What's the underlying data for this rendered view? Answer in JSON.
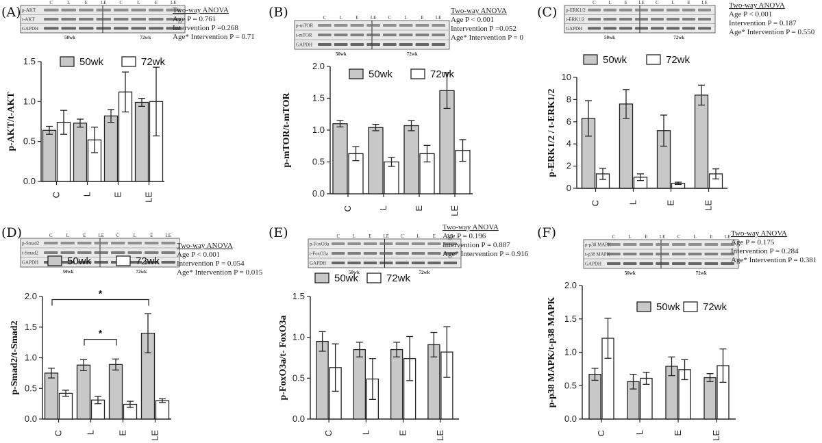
{
  "chart_data": [
    {
      "panel": "(A)",
      "type": "bar",
      "ylabel": "p-AKT/t-AKT",
      "categories": [
        "C",
        "L",
        "E",
        "LE"
      ],
      "ylim": [
        0,
        1.5
      ],
      "yticks": [
        "0.0",
        "0.5",
        "1.0",
        "1.5"
      ],
      "series": [
        {
          "name": "50wk",
          "values": [
            0.64,
            0.73,
            0.82,
            0.99
          ],
          "errors": [
            0.05,
            0.05,
            0.08,
            0.05
          ]
        },
        {
          "name": "72wk",
          "values": [
            0.74,
            0.52,
            1.12,
            1.0
          ],
          "errors": [
            0.15,
            0.16,
            0.25,
            0.43
          ]
        }
      ],
      "anova": [
        "Two-way ANOVA",
        "Age P = 0.761",
        "Intervention P =0.268",
        "Age* Intervention P = 0.71"
      ],
      "blot": {
        "lanes": [
          "C",
          "L",
          "E",
          "LE",
          "C",
          "L",
          "E",
          "LE"
        ],
        "rows": [
          "p-AKT",
          "t-AKT",
          "GAPDH"
        ],
        "groups": [
          "50wk",
          "72wk"
        ]
      },
      "sig": []
    },
    {
      "panel": "(B)",
      "type": "bar",
      "ylabel": "p-mTOR/t-mTOR",
      "categories": [
        "C",
        "L",
        "E",
        "LE"
      ],
      "ylim": [
        0,
        2.0
      ],
      "yticks": [
        "0.0",
        "0.5",
        "1.0",
        "1.5",
        "2.0"
      ],
      "series": [
        {
          "name": "50wk",
          "values": [
            1.1,
            1.04,
            1.07,
            1.62
          ],
          "errors": [
            0.05,
            0.05,
            0.08,
            0.28
          ]
        },
        {
          "name": "72wk",
          "values": [
            0.63,
            0.5,
            0.63,
            0.68
          ],
          "errors": [
            0.11,
            0.07,
            0.13,
            0.17
          ]
        }
      ],
      "anova": [
        "Two-way ANOVA",
        "Age P < 0.001",
        "Intervention P =0.052",
        "Age* Intervention P = 0"
      ],
      "blot": {
        "lanes": [
          "C",
          "L",
          "E",
          "LE",
          "C",
          "L",
          "E",
          "LE"
        ],
        "rows": [
          "p-mTOR",
          "t-mTOR",
          "GAPDH"
        ],
        "groups": [
          "50wk",
          "72wk"
        ]
      },
      "sig": []
    },
    {
      "panel": "(C)",
      "type": "bar",
      "ylabel": "p-ERK1/2 / t-ERK1/2",
      "categories": [
        "C",
        "L",
        "E",
        "LE"
      ],
      "ylim": [
        0,
        10
      ],
      "yticks": [
        "0",
        "2",
        "4",
        "6",
        "8",
        "10"
      ],
      "series": [
        {
          "name": "50wk",
          "values": [
            6.3,
            7.6,
            5.2,
            8.4
          ],
          "errors": [
            1.6,
            1.3,
            1.4,
            0.9
          ]
        },
        {
          "name": "72wk",
          "values": [
            1.3,
            1.0,
            0.45,
            1.3
          ],
          "errors": [
            0.5,
            0.3,
            0.1,
            0.45
          ]
        }
      ],
      "anova": [
        "Two-way ANOVA",
        "Age P < 0.001",
        "Intervention P = 0.187",
        "Age* Intervention P = 0.550"
      ],
      "blot": {
        "lanes": [
          "C",
          "L",
          "E",
          "LE",
          "C",
          "L",
          "E",
          "LE"
        ],
        "rows": [
          "p-ERK1/2",
          "t-ERK1/2",
          "GAPDH"
        ],
        "groups": [
          "50wk",
          "72wk"
        ]
      },
      "sig": []
    },
    {
      "panel": "(D)",
      "type": "bar",
      "ylabel": "p-Smad2/t-Smad2",
      "categories": [
        "C",
        "L",
        "E",
        "LE"
      ],
      "ylim": [
        0,
        2.0
      ],
      "yticks": [
        "0.0",
        "0.5",
        "1.0",
        "1.5",
        "2.0"
      ],
      "series": [
        {
          "name": "50wk",
          "values": [
            0.75,
            0.88,
            0.89,
            1.4
          ],
          "errors": [
            0.08,
            0.09,
            0.09,
            0.32
          ]
        },
        {
          "name": "72wk",
          "values": [
            0.42,
            0.31,
            0.24,
            0.3
          ],
          "errors": [
            0.05,
            0.06,
            0.05,
            0.03
          ]
        }
      ],
      "anova": [
        "Two-way ANOVA",
        "Age P < 0.001",
        "Intervention P = 0.054",
        "Age* Intervention P = 0.015"
      ],
      "blot": {
        "lanes": [
          "C",
          "L",
          "E",
          "LE",
          "C",
          "L",
          "E",
          "LE"
        ],
        "rows": [
          "p-Smad2",
          "t-Smad2",
          "GAPDH"
        ],
        "groups": [
          "50wk",
          "72wk"
        ]
      },
      "sig": [
        {
          "from": 0,
          "to": 3,
          "level": 1.95,
          "label": "*"
        },
        {
          "from": 1,
          "to": 2,
          "level": 1.3,
          "label": "*"
        }
      ]
    },
    {
      "panel": "(E)",
      "type": "bar",
      "ylabel": "p-FoxO3a/t- FoxO3a",
      "categories": [
        "C",
        "L",
        "E",
        "LE"
      ],
      "ylim": [
        0,
        1.5
      ],
      "yticks": [
        "0.0",
        "0.5",
        "1.0",
        "1.5"
      ],
      "series": [
        {
          "name": "50wk",
          "values": [
            0.95,
            0.85,
            0.85,
            0.91
          ],
          "errors": [
            0.12,
            0.09,
            0.09,
            0.15
          ]
        },
        {
          "name": "72wk",
          "values": [
            0.63,
            0.49,
            0.74,
            0.82
          ],
          "errors": [
            0.29,
            0.25,
            0.27,
            0.31
          ]
        }
      ],
      "anova": [
        "Two-way ANOVA",
        "Age P = 0.196",
        "Intervention P = 0.887",
        "Age* Intervention P = 0.916"
      ],
      "blot": {
        "lanes": [
          "C",
          "L",
          "E",
          "LE",
          "C",
          "L",
          "E",
          "LE"
        ],
        "rows": [
          "p-FoxO3a",
          "t-FoxO3a",
          "GAPDH"
        ],
        "groups": [
          "50wk",
          "72wk"
        ]
      },
      "sig": []
    },
    {
      "panel": "(F)",
      "type": "bar",
      "ylabel": "p-p38 MAPK/t-p38 MAPK",
      "categories": [
        "C",
        "L",
        "E",
        "LE"
      ],
      "ylim": [
        0,
        2.0
      ],
      "yticks": [
        "0.0",
        "0.5",
        "1.0",
        "1.5",
        "2.0"
      ],
      "series": [
        {
          "name": "50wk",
          "values": [
            0.67,
            0.56,
            0.79,
            0.62
          ],
          "errors": [
            0.09,
            0.11,
            0.14,
            0.06
          ]
        },
        {
          "name": "72wk",
          "values": [
            1.21,
            0.61,
            0.74,
            0.8
          ],
          "errors": [
            0.3,
            0.09,
            0.15,
            0.25
          ]
        }
      ],
      "anova": [
        "Two-way ANOVA",
        "Age P = 0.175",
        "Intervention P = 0.284",
        "Age* Intervention P = 0.381"
      ],
      "blot": {
        "lanes": [
          "C",
          "L",
          "E",
          "LE",
          "C",
          "L",
          "E",
          "LE"
        ],
        "rows": [
          "p-p38 MAPK",
          "t-p38 MAPK",
          "GAPDH"
        ],
        "groups": [
          "50wk",
          "72wk"
        ]
      },
      "sig": []
    }
  ],
  "colors": {
    "series_50wk": "#c8c8c8",
    "series_72wk": "#ffffff",
    "stroke": "#222222",
    "blot_bg": "#e9e9e9",
    "band": "#555555"
  }
}
